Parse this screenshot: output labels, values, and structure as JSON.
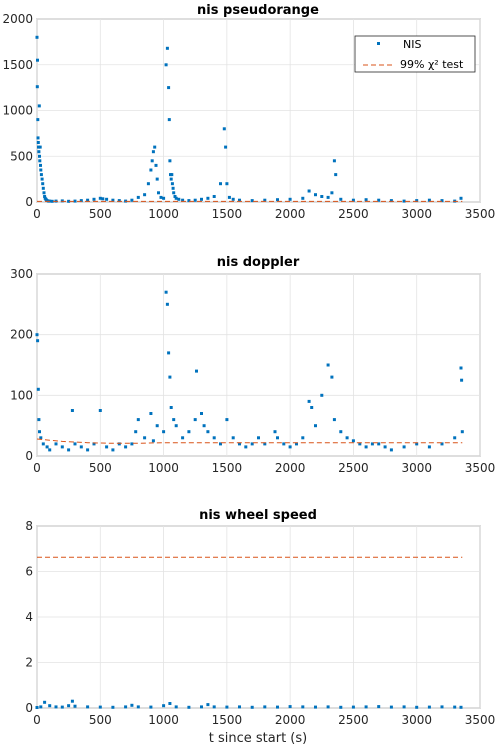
{
  "figure": {
    "xlabel": "t since start (s)",
    "colors": {
      "nis": "#0072bd",
      "threshold": "#d95319",
      "grid": "#e3e3e3",
      "axis": "#262626"
    }
  },
  "chart_data": [
    {
      "type": "scatter",
      "title": "nis pseudorange",
      "xlim": [
        0,
        3500
      ],
      "ylim": [
        0,
        2000
      ],
      "xticks": [
        0,
        500,
        1000,
        1500,
        2000,
        2500,
        3000,
        3500
      ],
      "yticks": [
        0,
        500,
        1000,
        1500,
        2000
      ],
      "grid": true,
      "legend": {
        "position": "top-right",
        "entries": [
          "NIS",
          "99% χ² test"
        ]
      },
      "series": [
        {
          "name": "NIS",
          "marker": "point",
          "x": [
            0,
            2,
            4,
            6,
            8,
            10,
            12,
            15,
            18,
            20,
            22,
            25,
            28,
            30,
            35,
            40,
            45,
            50,
            55,
            60,
            65,
            70,
            75,
            80,
            90,
            100,
            120,
            150,
            200,
            250,
            300,
            350,
            400,
            450,
            500,
            520,
            550,
            600,
            650,
            700,
            750,
            800,
            850,
            880,
            900,
            910,
            920,
            930,
            940,
            950,
            960,
            980,
            1000,
            1020,
            1030,
            1040,
            1045,
            1050,
            1055,
            1060,
            1065,
            1070,
            1075,
            1080,
            1090,
            1100,
            1120,
            1150,
            1200,
            1250,
            1300,
            1350,
            1400,
            1450,
            1480,
            1490,
            1500,
            1520,
            1550,
            1600,
            1700,
            1800,
            1900,
            2000,
            2100,
            2150,
            2200,
            2250,
            2300,
            2330,
            2350,
            2360,
            2400,
            2500,
            2600,
            2700,
            2800,
            2900,
            3000,
            3100,
            3200,
            3300,
            3350
          ],
          "y": [
            1800,
            1260,
            1550,
            900,
            700,
            650,
            600,
            550,
            1050,
            500,
            450,
            600,
            400,
            350,
            300,
            250,
            200,
            150,
            100,
            60,
            40,
            30,
            20,
            15,
            10,
            10,
            8,
            10,
            12,
            8,
            10,
            15,
            20,
            30,
            40,
            35,
            30,
            20,
            15,
            10,
            20,
            50,
            80,
            200,
            350,
            450,
            550,
            600,
            400,
            250,
            100,
            50,
            40,
            1500,
            1680,
            1250,
            900,
            450,
            300,
            250,
            300,
            200,
            150,
            100,
            60,
            40,
            30,
            20,
            15,
            20,
            30,
            40,
            60,
            200,
            800,
            600,
            200,
            50,
            30,
            20,
            15,
            20,
            25,
            30,
            40,
            120,
            80,
            60,
            50,
            100,
            450,
            300,
            30,
            20,
            25,
            20,
            15,
            10,
            15,
            20,
            15,
            10,
            40
          ]
        },
        {
          "name": "99% χ² test",
          "style": "dashed",
          "x": [
            0,
            3360
          ],
          "y": [
            6.6,
            6.6
          ]
        }
      ]
    },
    {
      "type": "scatter",
      "title": "nis doppler",
      "xlim": [
        0,
        3500
      ],
      "ylim": [
        0,
        300
      ],
      "xticks": [
        0,
        500,
        1000,
        1500,
        2000,
        2500,
        3000,
        3500
      ],
      "yticks": [
        0,
        100,
        200,
        300
      ],
      "grid": true,
      "series": [
        {
          "marker": "point",
          "x": [
            0,
            5,
            10,
            15,
            20,
            30,
            50,
            80,
            100,
            150,
            200,
            250,
            280,
            300,
            350,
            400,
            450,
            500,
            550,
            600,
            650,
            700,
            750,
            780,
            800,
            850,
            900,
            920,
            950,
            1000,
            1020,
            1030,
            1040,
            1050,
            1060,
            1080,
            1100,
            1150,
            1200,
            1250,
            1260,
            1300,
            1320,
            1350,
            1400,
            1450,
            1500,
            1550,
            1600,
            1650,
            1700,
            1750,
            1800,
            1880,
            1900,
            1950,
            2000,
            2050,
            2100,
            2150,
            2170,
            2200,
            2250,
            2300,
            2330,
            2350,
            2400,
            2450,
            2500,
            2550,
            2600,
            2650,
            2700,
            2750,
            2800,
            2900,
            3000,
            3100,
            3200,
            3300,
            3350,
            3355,
            3360
          ],
          "y": [
            200,
            190,
            110,
            60,
            40,
            30,
            20,
            15,
            10,
            20,
            15,
            10,
            75,
            20,
            15,
            10,
            20,
            75,
            15,
            10,
            20,
            15,
            20,
            40,
            60,
            30,
            70,
            25,
            50,
            40,
            270,
            250,
            170,
            130,
            80,
            60,
            50,
            30,
            40,
            60,
            140,
            70,
            50,
            40,
            30,
            20,
            60,
            30,
            20,
            15,
            20,
            30,
            20,
            40,
            30,
            20,
            15,
            20,
            30,
            90,
            80,
            50,
            100,
            150,
            130,
            60,
            40,
            30,
            25,
            20,
            15,
            20,
            20,
            15,
            10,
            15,
            20,
            15,
            20,
            30,
            145,
            125,
            40
          ]
        },
        {
          "style": "dashed",
          "x": [
            0,
            100,
            200,
            400,
            600,
            800,
            1000,
            1200,
            1400,
            1600,
            1800,
            2000,
            2200,
            2400,
            2600,
            2800,
            3000,
            3200,
            3360
          ],
          "y": [
            28,
            26,
            24,
            22,
            21,
            21,
            22,
            22,
            22,
            22,
            22,
            22,
            22,
            22,
            22,
            22,
            22,
            22,
            22
          ]
        }
      ]
    },
    {
      "type": "scatter",
      "title": "nis wheel speed",
      "xlim": [
        0,
        3500
      ],
      "ylim": [
        0,
        8
      ],
      "xticks": [
        0,
        500,
        1000,
        1500,
        2000,
        2500,
        3000,
        3500
      ],
      "yticks": [
        0,
        2,
        4,
        6,
        8
      ],
      "xlabel": "t since start (s)",
      "grid": true,
      "series": [
        {
          "marker": "point",
          "x": [
            0,
            30,
            60,
            100,
            150,
            200,
            250,
            280,
            300,
            400,
            500,
            600,
            700,
            750,
            800,
            900,
            1000,
            1050,
            1100,
            1200,
            1300,
            1350,
            1400,
            1500,
            1600,
            1700,
            1800,
            1900,
            2000,
            2100,
            2200,
            2300,
            2400,
            2500,
            2600,
            2700,
            2800,
            2900,
            3000,
            3100,
            3200,
            3300,
            3350
          ],
          "y": [
            0.02,
            0.05,
            0.25,
            0.1,
            0.05,
            0.04,
            0.1,
            0.3,
            0.08,
            0.05,
            0.04,
            0.03,
            0.05,
            0.12,
            0.05,
            0.04,
            0.1,
            0.2,
            0.05,
            0.03,
            0.05,
            0.15,
            0.05,
            0.04,
            0.05,
            0.03,
            0.05,
            0.04,
            0.06,
            0.05,
            0.04,
            0.05,
            0.03,
            0.04,
            0.05,
            0.06,
            0.04,
            0.05,
            0.03,
            0.04,
            0.05,
            0.04,
            0.03
          ]
        },
        {
          "style": "dashed",
          "x": [
            0,
            3360
          ],
          "y": [
            6.63,
            6.63
          ]
        }
      ]
    }
  ]
}
